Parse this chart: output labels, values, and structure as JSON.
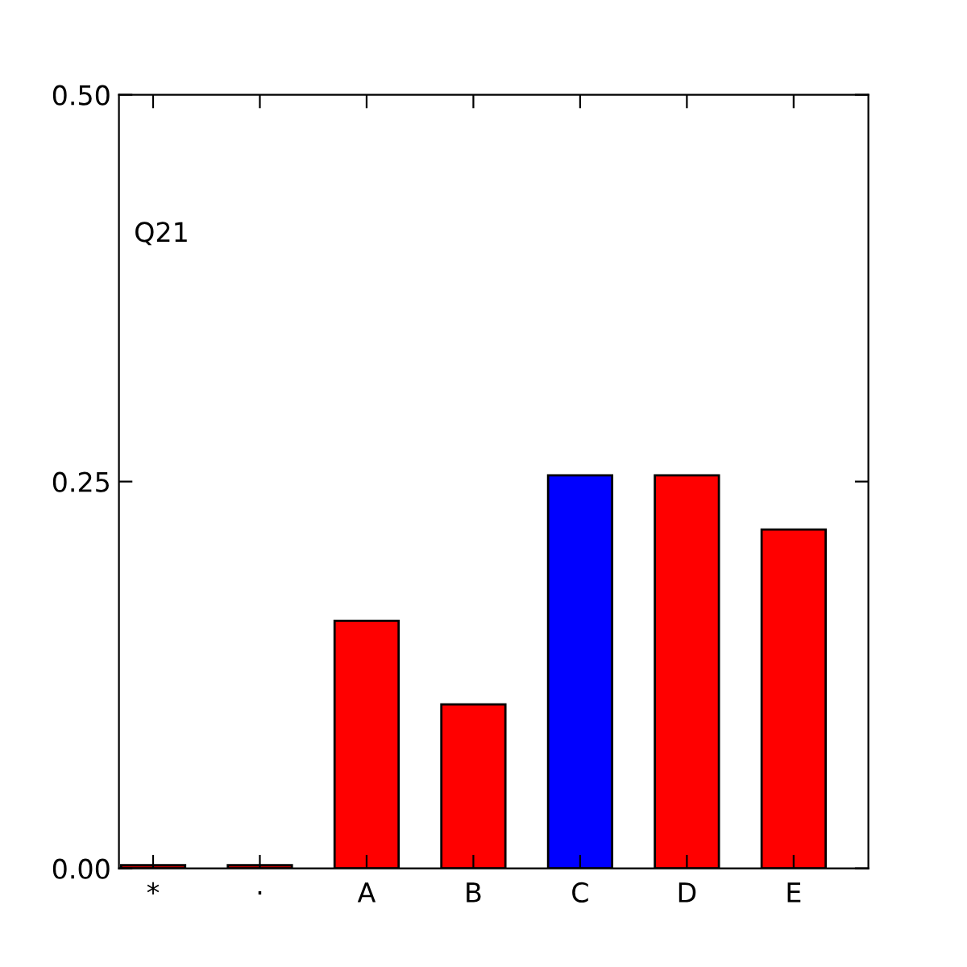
{
  "chart_data": {
    "type": "bar",
    "categories": [
      "*",
      "·",
      "A",
      "B",
      "C",
      "D",
      "E"
    ],
    "values": [
      0.002,
      0.002,
      0.16,
      0.106,
      0.254,
      0.254,
      0.219
    ],
    "colors": [
      "#ff0000",
      "#ff0000",
      "#ff0000",
      "#ff0000",
      "#0000ff",
      "#ff0000",
      "#ff0000"
    ],
    "ylim": [
      0,
      0.5
    ],
    "yticks": [
      {
        "value": 0,
        "label": "0.00"
      },
      {
        "value": 0.25,
        "label": "0.25"
      },
      {
        "value": 0.5,
        "label": "0.50"
      }
    ],
    "annotations": [
      "Q21"
    ],
    "grid": false
  }
}
